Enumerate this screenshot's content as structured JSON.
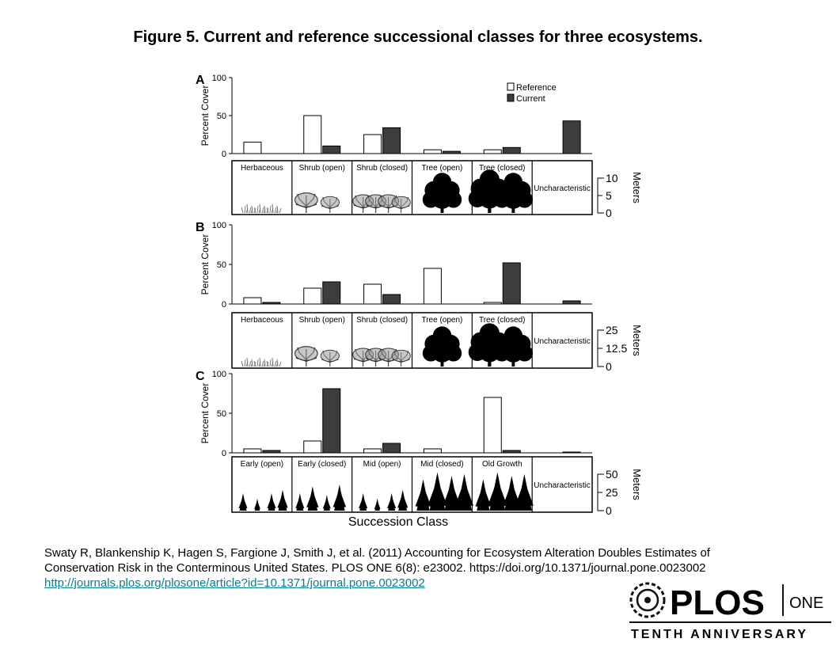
{
  "figure": {
    "title": "Figure 5. Current and reference successional classes for three ecosystems.",
    "xlabel": "Succession Class"
  },
  "colors": {
    "reference": "#ffffff",
    "current": "#3d3d3d",
    "silhouette": "#000000"
  },
  "chart_data": [
    {
      "type": "bar",
      "panel": "A",
      "ylabel": "Percent Cover",
      "ylim": [
        0,
        100
      ],
      "yticks": [
        "0",
        "50",
        "100"
      ],
      "legend": {
        "placement": "top-right",
        "items": [
          "Reference",
          "Current"
        ]
      },
      "categories": [
        "Herbaceous",
        "Shrub (open)",
        "Shrub (closed)",
        "Tree (open)",
        "Tree (closed)",
        "Uncharacteristic"
      ],
      "series": [
        {
          "name": "Reference",
          "values": [
            15,
            50,
            25,
            5,
            5,
            0
          ]
        },
        {
          "name": "Current",
          "values": [
            0,
            10,
            34,
            3,
            8,
            43
          ]
        }
      ],
      "illustration": {
        "unit": "Meters",
        "ticks": [
          "10",
          "5",
          "0"
        ],
        "silhouettes": [
          "grass",
          "shrub",
          "shrub",
          "tree",
          "tree",
          "none"
        ]
      }
    },
    {
      "type": "bar",
      "panel": "B",
      "ylabel": "Percent Cover",
      "ylim": [
        0,
        100
      ],
      "yticks": [
        "0",
        "50",
        "100"
      ],
      "categories": [
        "Herbaceous",
        "Shrub (open)",
        "Shrub (closed)",
        "Tree (open)",
        "Tree (closed)",
        "Uncharacteristic"
      ],
      "series": [
        {
          "name": "Reference",
          "values": [
            8,
            20,
            25,
            45,
            2,
            0
          ]
        },
        {
          "name": "Current",
          "values": [
            2,
            28,
            12,
            0,
            52,
            4
          ]
        }
      ],
      "illustration": {
        "unit": "Meters",
        "ticks": [
          "25",
          "12.5",
          "0"
        ],
        "silhouettes": [
          "grass",
          "shrub",
          "shrub",
          "tree",
          "tree",
          "none"
        ]
      }
    },
    {
      "type": "bar",
      "panel": "C",
      "ylabel": "Percent Cover",
      "ylim": [
        0,
        100
      ],
      "yticks": [
        "0",
        "50",
        "100"
      ],
      "categories": [
        "Early (open)",
        "Early (closed)",
        "Mid (open)",
        "Mid (closed)",
        "Old Growth",
        "Uncharacteristic"
      ],
      "series": [
        {
          "name": "Reference",
          "values": [
            5,
            15,
            5,
            5,
            70,
            0
          ]
        },
        {
          "name": "Current",
          "values": [
            3,
            81,
            12,
            0,
            3,
            1
          ]
        }
      ],
      "illustration": {
        "unit": "Meters",
        "ticks": [
          "50",
          "25",
          "0"
        ],
        "silhouettes": [
          "conifer",
          "conifer",
          "conifer",
          "conifer",
          "conifer",
          "none"
        ]
      }
    }
  ],
  "citation": {
    "text": "Swaty R, Blankenship K, Hagen S, Fargione J, Smith J, et al. (2011) Accounting for Ecosystem Alteration Doubles Estimates of Conservation Risk in the Conterminous United States. PLOS ONE 6(8): e23002. https://doi.org/10.1371/journal.pone.0023002",
    "link": "http://journals.plos.org/plosone/article?id=10.1371/journal.pone.0023002"
  },
  "logo": {
    "name": "PLOS",
    "journal": "ONE",
    "tagline": "TENTH ANNIVERSARY"
  }
}
